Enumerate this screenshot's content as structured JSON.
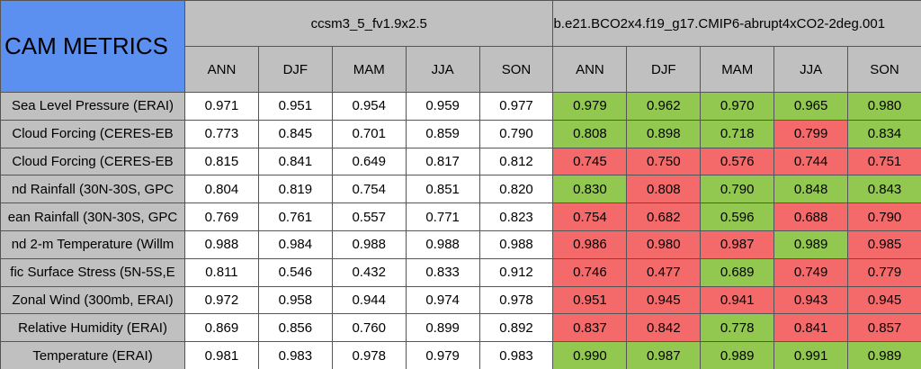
{
  "title": "CAM METRICS",
  "groups": [
    "ccsm3_5_fv1.9x2.5",
    "b.e21.BCO2x4.f19_g17.CMIP6-abrupt4xCO2-2deg.001"
  ],
  "seasons": [
    "ANN",
    "DJF",
    "MAM",
    "JJA",
    "SON"
  ],
  "header_color": "#5b8ff0",
  "rows": [
    {
      "label": "Sea Level Pressure (ERAI)",
      "base": [
        "0.971",
        "0.951",
        "0.954",
        "0.959",
        "0.977"
      ],
      "test": [
        "0.979",
        "0.962",
        "0.970",
        "0.965",
        "0.980"
      ],
      "test_colors": [
        "#92c850",
        "#92c850",
        "#92c850",
        "#92c850",
        "#92c850"
      ]
    },
    {
      "label": "Cloud Forcing (CERES-EB",
      "base": [
        "0.773",
        "0.845",
        "0.701",
        "0.859",
        "0.790"
      ],
      "test": [
        "0.808",
        "0.898",
        "0.718",
        "0.799",
        "0.834"
      ],
      "test_colors": [
        "#92c850",
        "#92c850",
        "#92c850",
        "#f46a6a",
        "#92c850"
      ]
    },
    {
      "label": "Cloud Forcing (CERES-EB",
      "base": [
        "0.815",
        "0.841",
        "0.649",
        "0.817",
        "0.812"
      ],
      "test": [
        "0.745",
        "0.750",
        "0.576",
        "0.744",
        "0.751"
      ],
      "test_colors": [
        "#f46a6a",
        "#f46a6a",
        "#f46a6a",
        "#f46a6a",
        "#f46a6a"
      ]
    },
    {
      "label": "nd Rainfall (30N-30S, GPC",
      "base": [
        "0.804",
        "0.819",
        "0.754",
        "0.851",
        "0.820"
      ],
      "test": [
        "0.830",
        "0.808",
        "0.790",
        "0.848",
        "0.843"
      ],
      "test_colors": [
        "#92c850",
        "#f46a6a",
        "#92c850",
        "#92c850",
        "#92c850"
      ]
    },
    {
      "label": "ean Rainfall (30N-30S, GPC",
      "base": [
        "0.769",
        "0.761",
        "0.557",
        "0.771",
        "0.823"
      ],
      "test": [
        "0.754",
        "0.682",
        "0.596",
        "0.688",
        "0.790"
      ],
      "test_colors": [
        "#f46a6a",
        "#f46a6a",
        "#92c850",
        "#f46a6a",
        "#f46a6a"
      ]
    },
    {
      "label": "nd 2-m Temperature (Willm",
      "base": [
        "0.988",
        "0.984",
        "0.988",
        "0.988",
        "0.988"
      ],
      "test": [
        "0.986",
        "0.980",
        "0.987",
        "0.989",
        "0.985"
      ],
      "test_colors": [
        "#f46a6a",
        "#f46a6a",
        "#f46a6a",
        "#92c850",
        "#f46a6a"
      ]
    },
    {
      "label": "fic Surface Stress (5N-5S,E",
      "base": [
        "0.811",
        "0.546",
        "0.432",
        "0.833",
        "0.912"
      ],
      "test": [
        "0.746",
        "0.477",
        "0.689",
        "0.749",
        "0.779"
      ],
      "test_colors": [
        "#f46a6a",
        "#f46a6a",
        "#92c850",
        "#f46a6a",
        "#f46a6a"
      ]
    },
    {
      "label": "Zonal Wind (300mb, ERAI)",
      "base": [
        "0.972",
        "0.958",
        "0.944",
        "0.974",
        "0.978"
      ],
      "test": [
        "0.951",
        "0.945",
        "0.941",
        "0.943",
        "0.945"
      ],
      "test_colors": [
        "#f46a6a",
        "#f46a6a",
        "#f46a6a",
        "#f46a6a",
        "#f46a6a"
      ]
    },
    {
      "label": "Relative Humidity (ERAI)",
      "base": [
        "0.869",
        "0.856",
        "0.760",
        "0.899",
        "0.892"
      ],
      "test": [
        "0.837",
        "0.842",
        "0.778",
        "0.841",
        "0.857"
      ],
      "test_colors": [
        "#f46a6a",
        "#f46a6a",
        "#92c850",
        "#f46a6a",
        "#f46a6a"
      ]
    },
    {
      "label": "Temperature (ERAI)",
      "base": [
        "0.981",
        "0.983",
        "0.978",
        "0.979",
        "0.983"
      ],
      "test": [
        "0.990",
        "0.987",
        "0.989",
        "0.991",
        "0.989"
      ],
      "test_colors": [
        "#92c850",
        "#92c850",
        "#92c850",
        "#92c850",
        "#92c850"
      ]
    }
  ]
}
